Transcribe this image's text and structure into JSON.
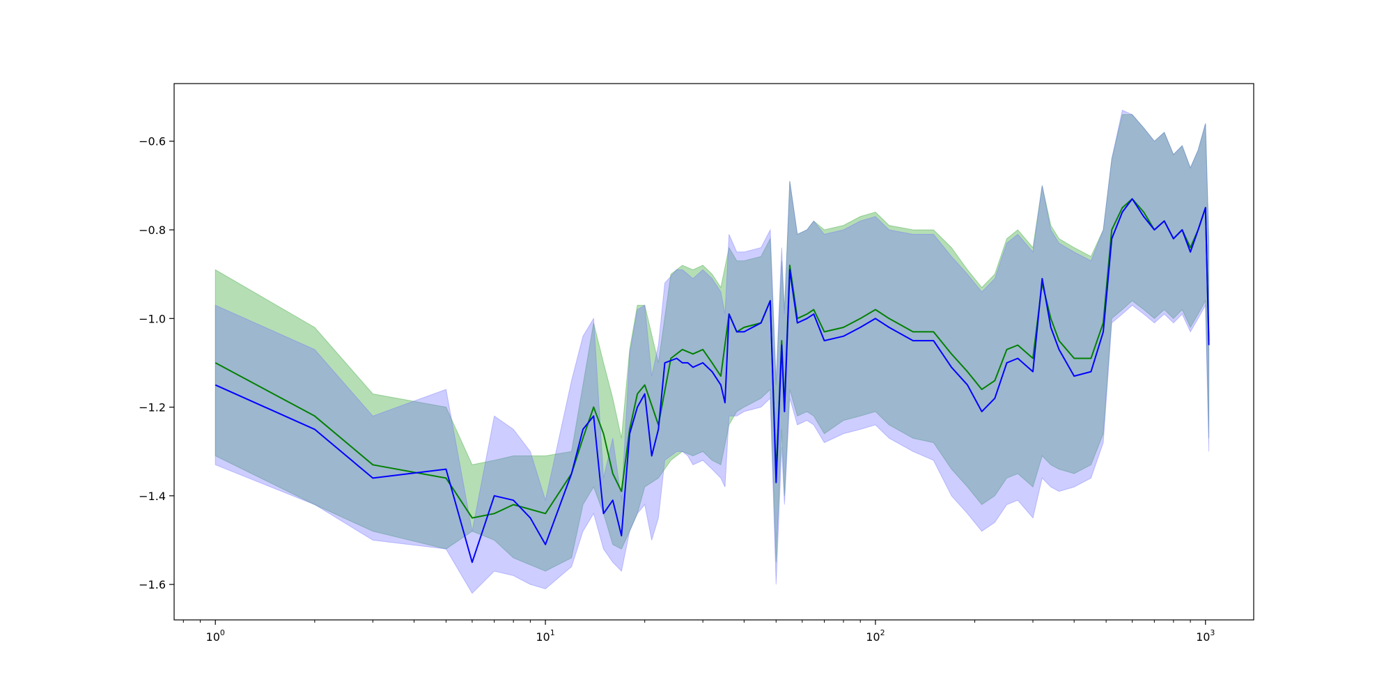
{
  "chart_data": {
    "type": "line",
    "title": "",
    "xlabel": "",
    "ylabel": "",
    "xscale": "log",
    "xlim": [
      0.75,
      1400
    ],
    "ylim": [
      -1.68,
      -0.47
    ],
    "grid": false,
    "legend": "none",
    "x_ticks": [
      {
        "value": 1,
        "base": "10",
        "exp": "0"
      },
      {
        "value": 10,
        "base": "10",
        "exp": "1"
      },
      {
        "value": 100,
        "base": "10",
        "exp": "2"
      },
      {
        "value": 1000,
        "base": "10",
        "exp": "3"
      }
    ],
    "y_ticks": [
      {
        "value": -0.6,
        "label": "−0.6"
      },
      {
        "value": -0.8,
        "label": "−0.8"
      },
      {
        "value": -1.0,
        "label": "−1.0"
      },
      {
        "value": -1.2,
        "label": "−1.2"
      },
      {
        "value": -1.4,
        "label": "−1.4"
      },
      {
        "value": -1.6,
        "label": "−1.6"
      }
    ],
    "series": [
      {
        "color": "#008000",
        "band_color": "#2ca02c",
        "x": [
          1,
          2,
          3,
          5,
          6,
          7,
          8,
          10,
          12,
          13,
          14,
          15,
          16,
          17,
          18,
          19,
          20,
          22,
          24,
          26,
          28,
          30,
          32,
          34,
          36,
          38,
          40,
          45,
          48,
          50,
          52,
          53,
          55,
          58,
          62,
          65,
          70,
          80,
          90,
          100,
          110,
          130,
          150,
          170,
          190,
          210,
          230,
          250,
          270,
          300,
          320,
          340,
          360,
          400,
          450,
          490,
          520,
          560,
          600,
          650,
          700,
          750,
          800,
          850,
          900,
          950,
          1000,
          1024
        ],
        "y": [
          -1.1,
          -1.22,
          -1.33,
          -1.36,
          -1.45,
          -1.44,
          -1.42,
          -1.44,
          -1.35,
          -1.27,
          -1.2,
          -1.26,
          -1.35,
          -1.39,
          -1.25,
          -1.17,
          -1.15,
          -1.24,
          -1.09,
          -1.07,
          -1.08,
          -1.07,
          -1.1,
          -1.13,
          -0.99,
          -1.03,
          -1.02,
          -1.01,
          -0.96,
          -1.35,
          -1.05,
          -1.2,
          -0.88,
          -1.0,
          -0.99,
          -0.98,
          -1.03,
          -1.02,
          -1.0,
          -0.98,
          -1.0,
          -1.03,
          -1.03,
          -1.08,
          -1.12,
          -1.16,
          -1.14,
          -1.07,
          -1.06,
          -1.09,
          -0.92,
          -1.0,
          -1.05,
          -1.09,
          -1.09,
          -1.01,
          -0.8,
          -0.75,
          -0.73,
          -0.76,
          -0.8,
          -0.78,
          -0.82,
          -0.8,
          -0.84,
          -0.8,
          -0.75,
          -1.05
        ],
        "lower": [
          -1.31,
          -1.42,
          -1.48,
          -1.52,
          -1.48,
          -1.5,
          -1.54,
          -1.57,
          -1.54,
          -1.42,
          -1.38,
          -1.44,
          -1.51,
          -1.52,
          -1.48,
          -1.44,
          -1.38,
          -1.36,
          -1.32,
          -1.3,
          -1.31,
          -1.3,
          -1.32,
          -1.33,
          -1.24,
          -1.21,
          -1.2,
          -1.18,
          -1.16,
          -1.55,
          -1.25,
          -1.4,
          -1.16,
          -1.22,
          -1.21,
          -1.22,
          -1.26,
          -1.23,
          -1.22,
          -1.21,
          -1.24,
          -1.27,
          -1.28,
          -1.34,
          -1.38,
          -1.42,
          -1.4,
          -1.36,
          -1.35,
          -1.38,
          -1.31,
          -1.33,
          -1.34,
          -1.35,
          -1.33,
          -1.26,
          -1.0,
          -0.98,
          -0.96,
          -0.98,
          -1.0,
          -0.98,
          -1.0,
          -0.98,
          -1.02,
          -0.99,
          -0.96,
          -1.27
        ],
        "upper": [
          -0.89,
          -1.02,
          -1.17,
          -1.2,
          -1.33,
          -1.32,
          -1.31,
          -1.31,
          -1.3,
          -1.15,
          -1.01,
          -1.1,
          -1.18,
          -1.27,
          -1.07,
          -0.97,
          -0.97,
          -1.1,
          -0.9,
          -0.88,
          -0.89,
          -0.88,
          -0.9,
          -0.93,
          -0.84,
          -0.87,
          -0.87,
          -0.86,
          -0.82,
          -1.15,
          -0.87,
          -0.98,
          -0.69,
          -0.81,
          -0.8,
          -0.78,
          -0.8,
          -0.79,
          -0.77,
          -0.76,
          -0.79,
          -0.8,
          -0.8,
          -0.84,
          -0.89,
          -0.93,
          -0.9,
          -0.82,
          -0.8,
          -0.84,
          -0.7,
          -0.79,
          -0.82,
          -0.84,
          -0.86,
          -0.8,
          -0.64,
          -0.54,
          -0.54,
          -0.57,
          -0.6,
          -0.58,
          -0.63,
          -0.61,
          -0.66,
          -0.62,
          -0.56,
          -0.82
        ]
      },
      {
        "color": "#0000ff",
        "band_color": "#7070ff",
        "x": [
          1,
          2,
          3,
          5,
          6,
          7,
          8,
          9,
          10,
          12,
          13,
          14,
          15,
          16,
          17,
          18,
          19,
          20,
          21,
          22,
          23,
          25,
          26,
          27,
          28,
          30,
          32,
          34,
          35,
          36,
          38,
          40,
          45,
          48,
          50,
          52,
          53,
          55,
          58,
          62,
          65,
          70,
          80,
          90,
          100,
          110,
          130,
          150,
          170,
          190,
          210,
          230,
          250,
          270,
          300,
          320,
          340,
          360,
          400,
          450,
          490,
          520,
          560,
          600,
          650,
          700,
          750,
          800,
          850,
          900,
          950,
          1000,
          1024
        ],
        "y": [
          -1.15,
          -1.25,
          -1.36,
          -1.34,
          -1.55,
          -1.4,
          -1.41,
          -1.45,
          -1.51,
          -1.35,
          -1.25,
          -1.22,
          -1.44,
          -1.41,
          -1.49,
          -1.26,
          -1.2,
          -1.17,
          -1.31,
          -1.25,
          -1.1,
          -1.09,
          -1.1,
          -1.1,
          -1.11,
          -1.1,
          -1.12,
          -1.15,
          -1.19,
          -0.99,
          -1.03,
          -1.03,
          -1.01,
          -0.96,
          -1.37,
          -1.06,
          -1.21,
          -0.89,
          -1.01,
          -1.0,
          -0.99,
          -1.05,
          -1.04,
          -1.02,
          -1.0,
          -1.02,
          -1.05,
          -1.05,
          -1.11,
          -1.15,
          -1.21,
          -1.18,
          -1.1,
          -1.09,
          -1.12,
          -0.91,
          -1.02,
          -1.07,
          -1.13,
          -1.12,
          -1.03,
          -0.82,
          -0.76,
          -0.73,
          -0.77,
          -0.8,
          -0.78,
          -0.82,
          -0.8,
          -0.85,
          -0.8,
          -0.75,
          -1.06
        ],
        "lower": [
          -1.33,
          -1.42,
          -1.5,
          -1.52,
          -1.62,
          -1.57,
          -1.58,
          -1.6,
          -1.61,
          -1.56,
          -1.48,
          -1.44,
          -1.52,
          -1.55,
          -1.57,
          -1.48,
          -1.44,
          -1.42,
          -1.5,
          -1.45,
          -1.32,
          -1.3,
          -1.3,
          -1.31,
          -1.33,
          -1.32,
          -1.34,
          -1.36,
          -1.38,
          -1.22,
          -1.22,
          -1.21,
          -1.2,
          -1.18,
          -1.6,
          -1.29,
          -1.42,
          -1.18,
          -1.24,
          -1.23,
          -1.24,
          -1.28,
          -1.26,
          -1.25,
          -1.24,
          -1.27,
          -1.3,
          -1.32,
          -1.4,
          -1.44,
          -1.48,
          -1.46,
          -1.42,
          -1.41,
          -1.45,
          -1.36,
          -1.38,
          -1.39,
          -1.38,
          -1.36,
          -1.28,
          -1.01,
          -0.99,
          -0.97,
          -0.99,
          -1.01,
          -0.99,
          -1.01,
          -0.99,
          -1.03,
          -1.0,
          -0.97,
          -1.3
        ],
        "upper": [
          -0.97,
          -1.07,
          -1.22,
          -1.16,
          -1.48,
          -1.22,
          -1.25,
          -1.3,
          -1.41,
          -1.14,
          -1.04,
          -1.0,
          -1.36,
          -1.27,
          -1.41,
          -1.08,
          -0.98,
          -0.97,
          -1.13,
          -1.06,
          -0.92,
          -0.89,
          -0.89,
          -0.9,
          -0.91,
          -0.89,
          -0.91,
          -0.94,
          -0.99,
          -0.81,
          -0.85,
          -0.85,
          -0.84,
          -0.8,
          -1.14,
          -0.84,
          -0.99,
          -0.69,
          -0.81,
          -0.8,
          -0.78,
          -0.81,
          -0.8,
          -0.78,
          -0.77,
          -0.8,
          -0.81,
          -0.81,
          -0.86,
          -0.9,
          -0.94,
          -0.91,
          -0.83,
          -0.81,
          -0.85,
          -0.7,
          -0.8,
          -0.83,
          -0.85,
          -0.87,
          -0.8,
          -0.64,
          -0.53,
          -0.54,
          -0.57,
          -0.6,
          -0.58,
          -0.63,
          -0.61,
          -0.66,
          -0.62,
          -0.56,
          -0.83
        ]
      }
    ]
  }
}
